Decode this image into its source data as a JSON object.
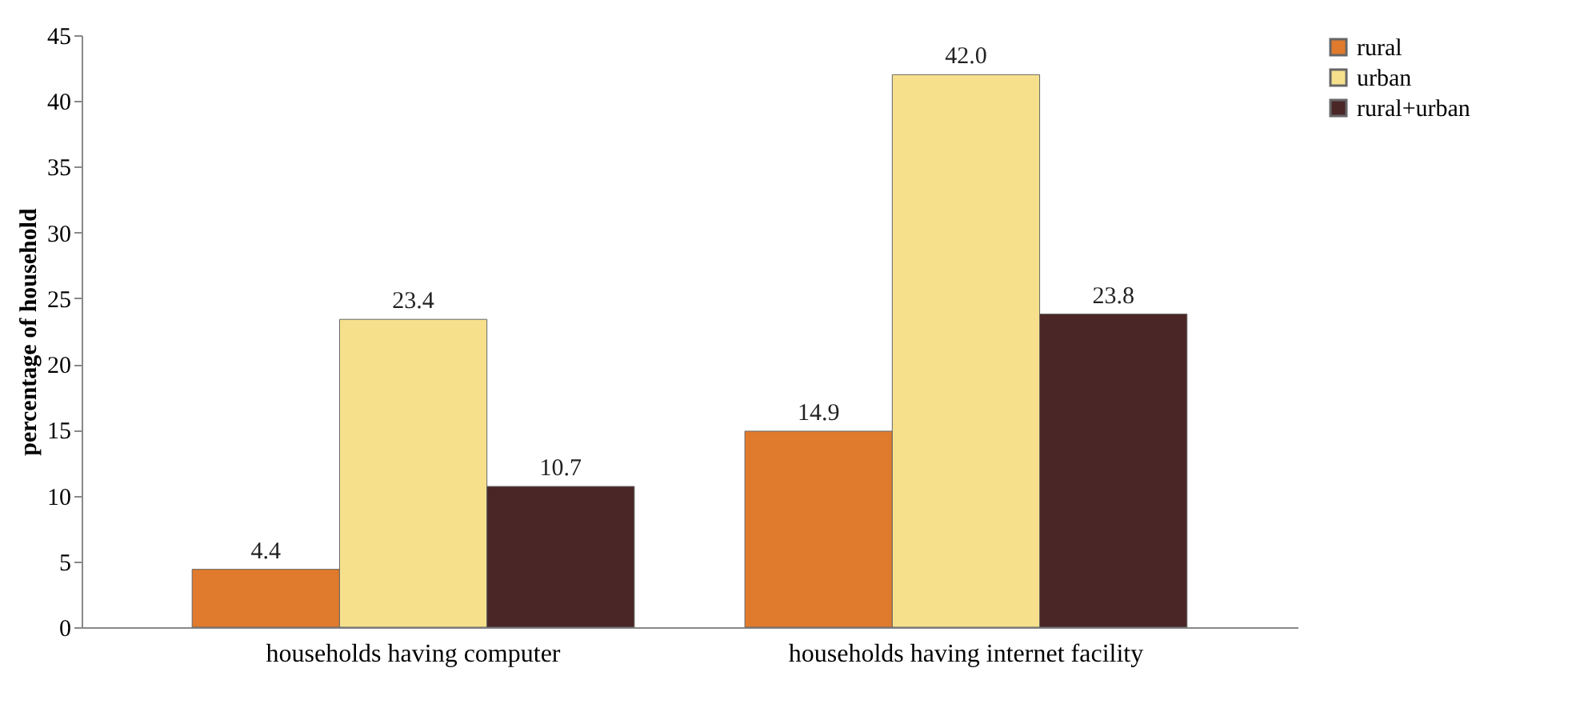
{
  "chart_data": {
    "type": "bar",
    "ylabel": "percentage of household",
    "categories": [
      "households having computer",
      "households having internet facility"
    ],
    "series": [
      {
        "name": "rural",
        "color": "#e07a2c",
        "values": [
          4.4,
          14.9
        ],
        "value_labels": [
          "4.4",
          "14.9"
        ]
      },
      {
        "name": "urban",
        "color": "#f6e08c",
        "values": [
          23.4,
          42.0
        ],
        "value_labels": [
          "23.4",
          "42.0"
        ]
      },
      {
        "name": "rural+urban",
        "color": "#4a2626",
        "values": [
          10.7,
          23.8
        ],
        "value_labels": [
          "10.7",
          "23.8"
        ]
      }
    ],
    "ylim": [
      0,
      45
    ],
    "yticks": [
      0,
      5,
      10,
      15,
      20,
      25,
      30,
      35,
      40,
      45
    ],
    "grid": false,
    "legend": "right"
  }
}
